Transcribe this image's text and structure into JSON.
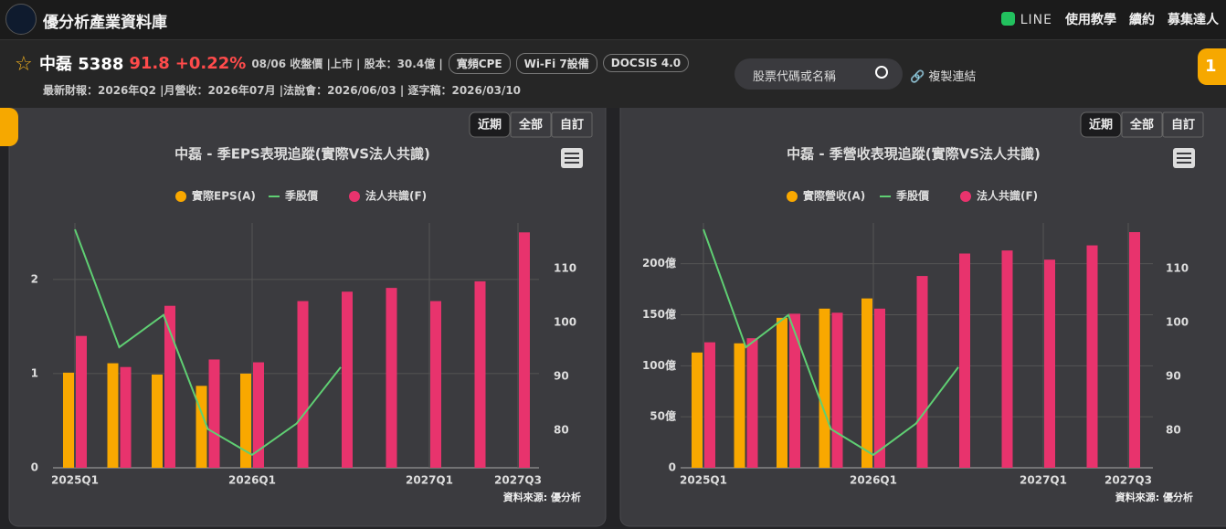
{
  "header": {
    "site_title": "優分析產業資料庫",
    "nav": [
      "LINE",
      "使用教學",
      "續約",
      "募集達人"
    ]
  },
  "stock": {
    "name": "中磊 5388",
    "price": "91.8",
    "change": "+0.22%",
    "info": "08/06 收盤價 |上市 | 股本：30.4億 |",
    "tags": [
      "寬頻CPE",
      "Wi-Fi 7設備",
      "DOCSIS 4.0"
    ],
    "meta": "最新財報：2026年Q2 |月營收：2026年07月 |法說會：2026/06/03 | 逐字稿：2026/03/10"
  },
  "search": {
    "placeholder": "股票代碼或名稱",
    "link": "複製連結"
  },
  "badge": "1",
  "chart_data": [
    {
      "type": "bar",
      "title": "中磊 - 季EPS表現追蹤(實際VS法人共識)",
      "range_buttons": [
        "近期",
        "全部",
        "自訂"
      ],
      "source": "資料來源: 優分析",
      "categories": [
        "2025Q1",
        null,
        null,
        null,
        "2026Q1",
        null,
        null,
        null,
        "2027Q1",
        null,
        "2027Q3"
      ],
      "series": [
        {
          "name": "實際EPS(A)",
          "type": "bar",
          "color": "#f9a800",
          "values": [
            1.01,
            1.11,
            0.99,
            0.87,
            1.0,
            null,
            null,
            null,
            null,
            null,
            null
          ]
        },
        {
          "name": "季股價",
          "type": "line",
          "axis": "y2",
          "color": "#5fcf73",
          "values": [
            117.3,
            95.4,
            101.4,
            80.2,
            75.4,
            81.2,
            91.7,
            null,
            null,
            null,
            null
          ]
        },
        {
          "name": "法人共識(F)",
          "type": "bar",
          "color": "#e8336d",
          "values": [
            1.4,
            1.07,
            1.72,
            1.15,
            1.12,
            1.77,
            1.87,
            1.91,
            1.77,
            1.98,
            2.5
          ]
        }
      ],
      "ylim": [
        0,
        2.6
      ],
      "yticks": [
        0,
        1,
        2
      ],
      "y2lim": [
        73,
        118.5
      ],
      "y2ticks": [
        80,
        90,
        100,
        110
      ],
      "grid": true
    },
    {
      "type": "bar",
      "title": "中磊 - 季營收表現追蹤(實際VS法人共識)",
      "range_buttons": [
        "近期",
        "全部",
        "自訂"
      ],
      "source": "資料來源: 優分析",
      "categories": [
        "2025Q1",
        null,
        null,
        null,
        "2026Q1",
        null,
        null,
        null,
        "2027Q1",
        null,
        "2027Q3"
      ],
      "series": [
        {
          "name": "實際營收(A)",
          "type": "bar",
          "color": "#f9a800",
          "values": [
            113,
            122,
            147,
            156,
            166,
            null,
            null,
            null,
            null,
            null,
            null
          ]
        },
        {
          "name": "季股價",
          "type": "line",
          "axis": "y2",
          "color": "#5fcf73",
          "values": [
            117.3,
            95.4,
            101.4,
            80.2,
            75.4,
            81.2,
            91.7,
            null,
            null,
            null,
            null
          ]
        },
        {
          "name": "法人共識(F)",
          "type": "bar",
          "color": "#e8336d",
          "values": [
            123,
            127,
            151,
            152,
            156,
            188,
            210,
            213,
            204,
            218,
            231
          ]
        }
      ],
      "ylim": [
        0,
        240
      ],
      "yticks": [
        0,
        {
          "value": 50,
          "label": "50億"
        },
        {
          "value": 100,
          "label": "100億"
        },
        {
          "value": 150,
          "label": "150億"
        },
        {
          "value": 200,
          "label": "200億"
        }
      ],
      "y2lim": [
        73,
        118.5
      ],
      "y2ticks": [
        80,
        90,
        100,
        110
      ],
      "grid": true
    }
  ]
}
